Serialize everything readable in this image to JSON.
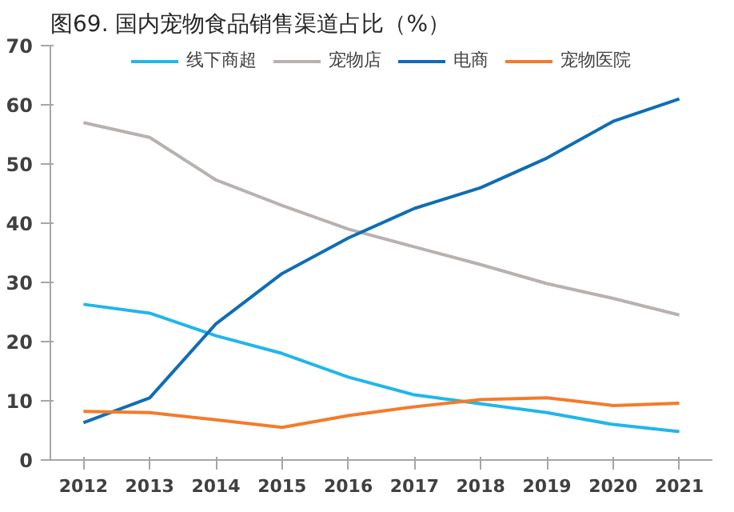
{
  "chart_data": {
    "type": "line",
    "title": "图69. 国内宠物食品销售渠道占比（%）",
    "categories": [
      "2012",
      "2013",
      "2014",
      "2015",
      "2016",
      "2017",
      "2018",
      "2019",
      "2020",
      "2021"
    ],
    "series": [
      {
        "name": "线下商超",
        "color": "#21b6ea",
        "values": [
          26.3,
          24.8,
          21,
          18,
          14,
          11,
          9.5,
          8,
          6,
          4.8
        ]
      },
      {
        "name": "宠物店",
        "color": "#b7b2b0",
        "values": [
          57,
          54.5,
          47.3,
          43,
          39,
          36,
          33,
          29.8,
          27.3,
          24.5
        ]
      },
      {
        "name": "电商",
        "color": "#0f6db5",
        "values": [
          6.3,
          10.5,
          23,
          31.5,
          37.5,
          42.5,
          46,
          51,
          57.2,
          61
        ]
      },
      {
        "name": "宠物医院",
        "color": "#f47b2a",
        "values": [
          8.2,
          8,
          6.8,
          5.5,
          7.5,
          9,
          10.2,
          10.5,
          9.2,
          9.6
        ]
      }
    ],
    "ylim": [
      0,
      70
    ],
    "yticks": [
      0,
      10,
      20,
      30,
      40,
      50,
      60,
      70
    ],
    "grid": false,
    "legend": "top",
    "marker": "none",
    "line_style": "solid"
  }
}
